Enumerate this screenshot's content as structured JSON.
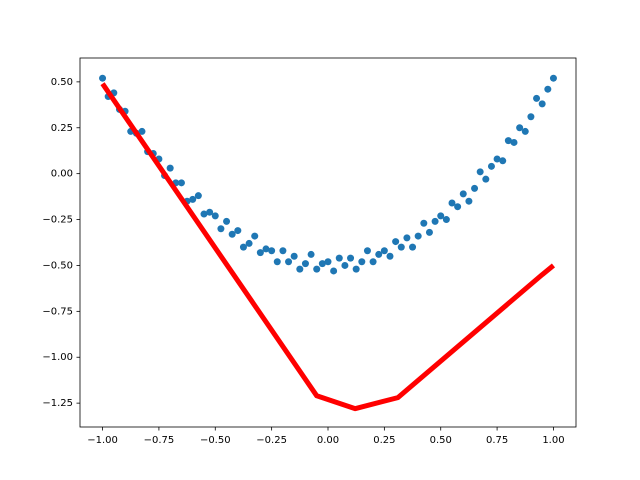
{
  "chart_data": {
    "type": "combo",
    "xlim": [
      -1.1,
      1.1
    ],
    "ylim": [
      -1.38,
      0.63
    ],
    "xticks": [
      {
        "value": -1,
        "label": "−1.00"
      },
      {
        "value": -0.75,
        "label": "−0.75"
      },
      {
        "value": -0.5,
        "label": "−0.50"
      },
      {
        "value": -0.25,
        "label": "−0.25"
      },
      {
        "value": 0,
        "label": "0.00"
      },
      {
        "value": 0.25,
        "label": "0.25"
      },
      {
        "value": 0.5,
        "label": "0.50"
      },
      {
        "value": 0.75,
        "label": "0.75"
      },
      {
        "value": 1,
        "label": "1.00"
      }
    ],
    "yticks": [
      {
        "value": 0.5,
        "label": "0.50"
      },
      {
        "value": 0.25,
        "label": "0.25"
      },
      {
        "value": 0,
        "label": "0.00"
      },
      {
        "value": -0.25,
        "label": "−0.25"
      },
      {
        "value": -0.5,
        "label": "−0.50"
      },
      {
        "value": -0.75,
        "label": "−0.75"
      },
      {
        "value": -1,
        "label": "−1.00"
      },
      {
        "value": -1.25,
        "label": "−1.25"
      }
    ],
    "series": [
      {
        "type": "scatter",
        "color": "#1f77b4",
        "x": [
          -1.0,
          -0.975,
          -0.95,
          -0.925,
          -0.9,
          -0.875,
          -0.85,
          -0.825,
          -0.8,
          -0.775,
          -0.75,
          -0.725,
          -0.7,
          -0.675,
          -0.65,
          -0.625,
          -0.6,
          -0.575,
          -0.55,
          -0.525,
          -0.5,
          -0.475,
          -0.45,
          -0.425,
          -0.4,
          -0.375,
          -0.35,
          -0.325,
          -0.3,
          -0.275,
          -0.25,
          -0.225,
          -0.2,
          -0.175,
          -0.15,
          -0.125,
          -0.1,
          -0.075,
          -0.05,
          -0.025,
          0.0,
          0.025,
          0.05,
          0.075,
          0.1,
          0.125,
          0.15,
          0.175,
          0.2,
          0.225,
          0.25,
          0.275,
          0.3,
          0.325,
          0.35,
          0.375,
          0.4,
          0.425,
          0.45,
          0.475,
          0.5,
          0.525,
          0.55,
          0.575,
          0.6,
          0.625,
          0.65,
          0.675,
          0.7,
          0.725,
          0.75,
          0.775,
          0.8,
          0.825,
          0.85,
          0.875,
          0.9,
          0.925,
          0.95,
          0.975,
          1.0
        ],
        "values": [
          0.52,
          0.42,
          0.44,
          0.35,
          0.34,
          0.23,
          0.22,
          0.23,
          0.12,
          0.11,
          0.08,
          -0.01,
          0.03,
          -0.05,
          -0.05,
          -0.15,
          -0.14,
          -0.12,
          -0.22,
          -0.21,
          -0.23,
          -0.3,
          -0.26,
          -0.33,
          -0.31,
          -0.4,
          -0.38,
          -0.34,
          -0.43,
          -0.41,
          -0.42,
          -0.48,
          -0.42,
          -0.48,
          -0.45,
          -0.52,
          -0.49,
          -0.44,
          -0.52,
          -0.49,
          -0.48,
          -0.53,
          -0.46,
          -0.5,
          -0.46,
          -0.52,
          -0.48,
          -0.42,
          -0.48,
          -0.44,
          -0.42,
          -0.45,
          -0.37,
          -0.4,
          -0.35,
          -0.4,
          -0.34,
          -0.27,
          -0.32,
          -0.26,
          -0.23,
          -0.25,
          -0.16,
          -0.18,
          -0.11,
          -0.15,
          -0.08,
          0.01,
          -0.03,
          0.04,
          0.08,
          0.07,
          0.18,
          0.17,
          0.25,
          0.23,
          0.31,
          0.41,
          0.38,
          0.46,
          0.52
        ]
      },
      {
        "type": "line",
        "color": "#ff0000",
        "x": [
          -1.0,
          -0.05,
          0.12,
          0.31,
          0.95,
          1.0
        ],
        "values": [
          0.49,
          -1.21,
          -1.28,
          -1.22,
          -0.55,
          -0.5
        ]
      }
    ]
  }
}
